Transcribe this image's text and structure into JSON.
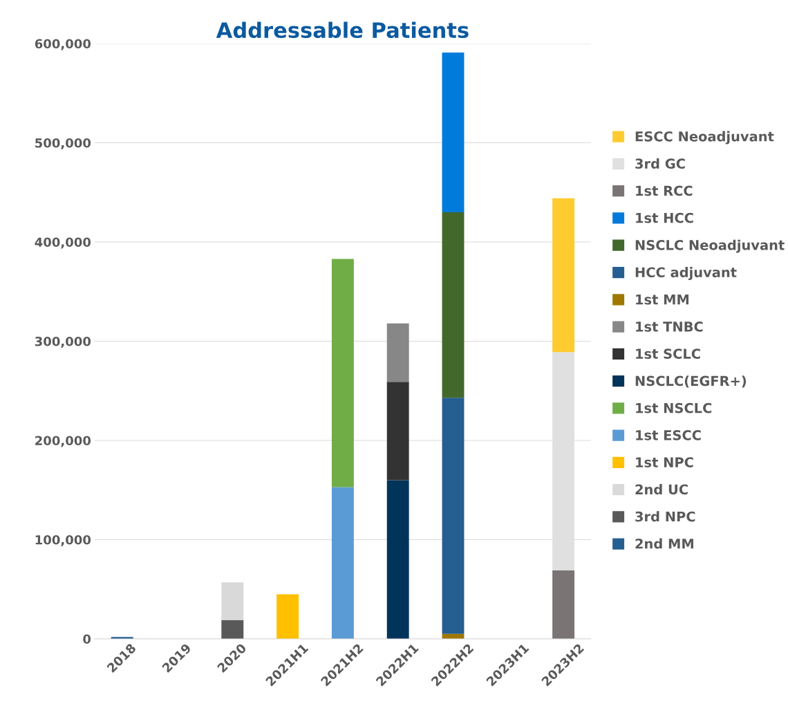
{
  "chart_data": {
    "type": "bar",
    "title": "Addressable Patients",
    "stacked": true,
    "categories": [
      "2018",
      "2019",
      "2020",
      "2021H1",
      "2021H2",
      "2022H1",
      "2022H2",
      "2023H1",
      "2023H2"
    ],
    "ylim": [
      0,
      600000
    ],
    "yticks": [
      {
        "value": 0,
        "label": "0"
      },
      {
        "value": 100000,
        "label": "100,000"
      },
      {
        "value": 200000,
        "label": "200,000"
      },
      {
        "value": 300000,
        "label": "300,000"
      },
      {
        "value": 400000,
        "label": "400,000"
      },
      {
        "value": 500000,
        "label": "500,000"
      },
      {
        "value": 600000,
        "label": "600,000"
      }
    ],
    "grid": "y",
    "legend": "right",
    "series": [
      {
        "name": "2nd MM",
        "color": "#255e91",
        "values": [
          2000,
          null,
          null,
          null,
          null,
          null,
          null,
          null,
          null
        ]
      },
      {
        "name": "3rd NPC",
        "color": "#595959",
        "values": [
          null,
          null,
          19000,
          null,
          null,
          null,
          null,
          null,
          null
        ]
      },
      {
        "name": "2nd UC",
        "color": "#d9d9d9",
        "values": [
          null,
          null,
          38000,
          null,
          null,
          null,
          null,
          null,
          null
        ]
      },
      {
        "name": "1st NPC",
        "color": "#ffc000",
        "values": [
          null,
          null,
          null,
          45000,
          null,
          null,
          null,
          null,
          null
        ]
      },
      {
        "name": "1st ESCC",
        "color": "#5b9bd5",
        "values": [
          null,
          null,
          null,
          null,
          153000,
          null,
          null,
          null,
          null
        ]
      },
      {
        "name": "1st NSCLC",
        "color": "#70ad47",
        "values": [
          null,
          null,
          null,
          null,
          230000,
          null,
          null,
          null,
          null
        ]
      },
      {
        "name": "NSCLC(EGFR+)",
        "color": "#00345a",
        "values": [
          null,
          null,
          null,
          null,
          null,
          160000,
          null,
          null,
          null
        ]
      },
      {
        "name": "1st SCLC",
        "color": "#333333",
        "values": [
          null,
          null,
          null,
          null,
          null,
          99000,
          null,
          null,
          null
        ]
      },
      {
        "name": "1st TNBC",
        "color": "#878787",
        "values": [
          null,
          null,
          null,
          null,
          null,
          59000,
          null,
          null,
          null
        ]
      },
      {
        "name": "1st MM",
        "color": "#9e7800",
        "values": [
          null,
          null,
          null,
          null,
          null,
          null,
          5000,
          null,
          null
        ]
      },
      {
        "name": "HCC adjuvant",
        "color": "#255e91",
        "values": [
          null,
          null,
          null,
          null,
          null,
          null,
          238000,
          null,
          null
        ]
      },
      {
        "name": "NSCLC Neoadjuvant",
        "color": "#43682b",
        "values": [
          null,
          null,
          null,
          null,
          null,
          null,
          187000,
          null,
          null
        ]
      },
      {
        "name": "1st HCC",
        "color": "#007bdb",
        "values": [
          null,
          null,
          null,
          null,
          null,
          null,
          161000,
          null,
          null
        ]
      },
      {
        "name": "1st RCC",
        "color": "#7a7474",
        "values": [
          null,
          null,
          null,
          null,
          null,
          null,
          null,
          null,
          69000
        ]
      },
      {
        "name": "3rd GC",
        "color": "#e0e0e0",
        "values": [
          null,
          null,
          null,
          null,
          null,
          null,
          null,
          null,
          220000
        ]
      },
      {
        "name": "ESCC Neoadjuvant",
        "color": "#ffcb2f",
        "values": [
          null,
          null,
          null,
          null,
          null,
          null,
          null,
          null,
          155000
        ]
      }
    ]
  }
}
